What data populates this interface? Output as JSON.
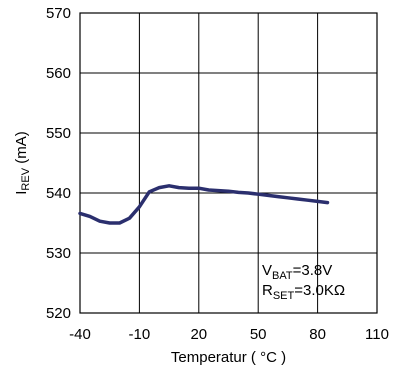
{
  "chart_data": {
    "type": "line",
    "xlabel": "Temperatur ( °C )",
    "ylabel": {
      "main": "I",
      "sub": "REV",
      "unit": " (mA)"
    },
    "xlim": [
      -40,
      110
    ],
    "ylim": [
      520,
      570
    ],
    "x_ticks": [
      -40,
      -10,
      20,
      50,
      80,
      110
    ],
    "y_ticks": [
      520,
      530,
      540,
      550,
      560,
      570
    ],
    "grid": true,
    "series": [
      {
        "color": "#2b2f6e",
        "points": [
          [
            -40,
            536.6
          ],
          [
            -35,
            536.1
          ],
          [
            -30,
            535.3
          ],
          [
            -25,
            535.0
          ],
          [
            -20,
            535.0
          ],
          [
            -15,
            535.8
          ],
          [
            -10,
            537.7
          ],
          [
            -5,
            540.2
          ],
          [
            0,
            540.9
          ],
          [
            5,
            541.2
          ],
          [
            10,
            540.9
          ],
          [
            15,
            540.8
          ],
          [
            20,
            540.8
          ],
          [
            25,
            540.5
          ],
          [
            30,
            540.4
          ],
          [
            35,
            540.3
          ],
          [
            40,
            540.1
          ],
          [
            45,
            540.0
          ],
          [
            50,
            539.8
          ],
          [
            55,
            539.6
          ],
          [
            60,
            539.4
          ],
          [
            65,
            539.2
          ],
          [
            70,
            539.0
          ],
          [
            75,
            538.8
          ],
          [
            80,
            538.6
          ],
          [
            85,
            538.4
          ]
        ]
      }
    ],
    "annotations": [
      {
        "main": "V",
        "sub": "BAT",
        "rest": "=3.8V"
      },
      {
        "main": "R",
        "sub": "SET",
        "rest": "=3.0KΩ"
      }
    ]
  }
}
